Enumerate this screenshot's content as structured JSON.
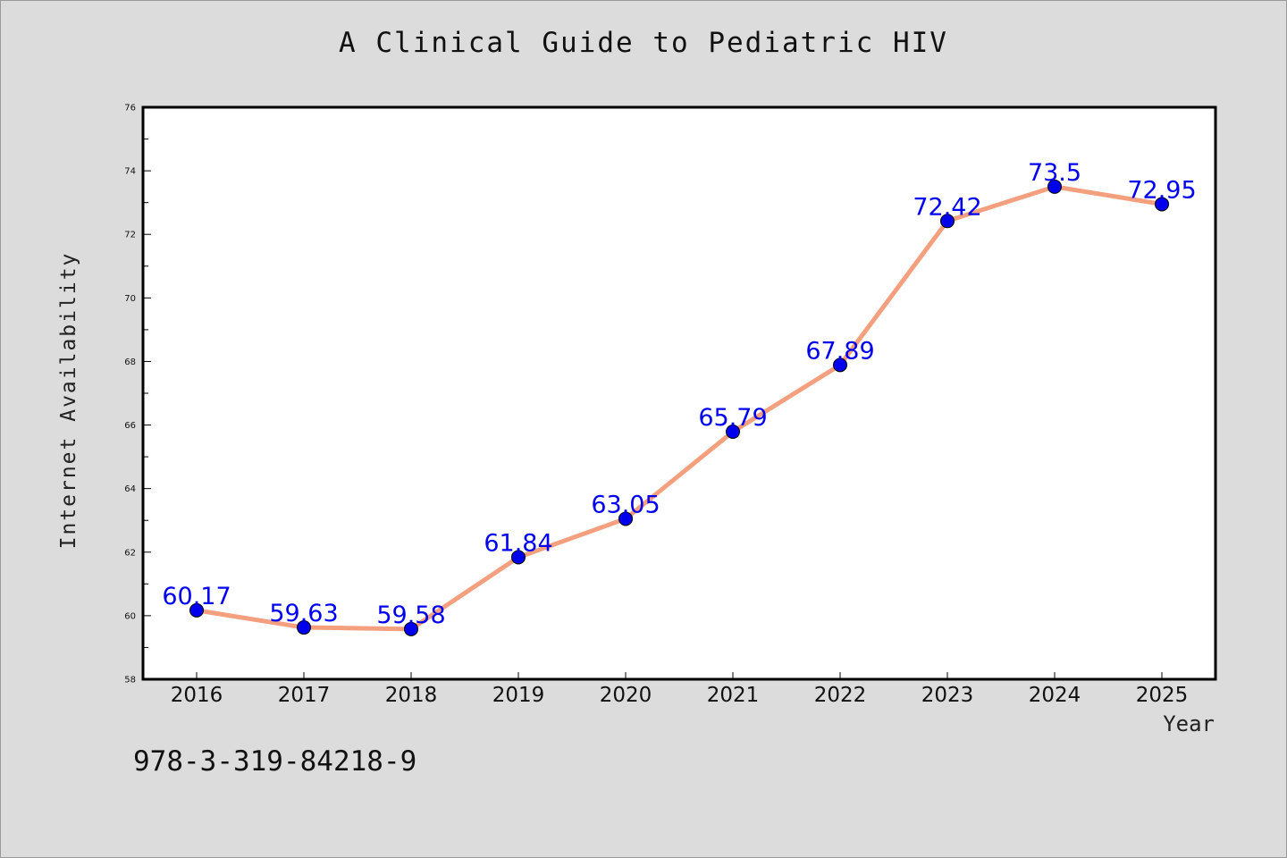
{
  "chart_data": {
    "type": "line",
    "title": "A Clinical Guide to Pediatric HIV",
    "xlabel": "Year",
    "ylabel": "Internet Availability",
    "x": [
      "2016",
      "2017",
      "2018",
      "2019",
      "2020",
      "2021",
      "2022",
      "2023",
      "2024",
      "2025"
    ],
    "series": [
      {
        "values": [
          60.17,
          59.63,
          59.58,
          61.84,
          63.05,
          65.79,
          67.89,
          72.42,
          73.5,
          72.95
        ],
        "labels": [
          "60.17",
          "59.63",
          "59.58",
          "61.84",
          "63.05",
          "65.79",
          "67.89",
          "72.42",
          "73.5",
          "72.95"
        ],
        "line_color": "#f4a07f",
        "marker_color": "#0000ee",
        "label_color": "#0000ee"
      }
    ],
    "ylim": [
      58,
      76
    ],
    "yticks": [
      "58",
      "60",
      "62",
      "64",
      "66",
      "68",
      "70",
      "72",
      "74",
      "76"
    ],
    "grid": false,
    "legend": "none",
    "plot_background": "#ffffff",
    "page_background": "#dcdcdc"
  },
  "footnote": "978-3-319-84218-9"
}
